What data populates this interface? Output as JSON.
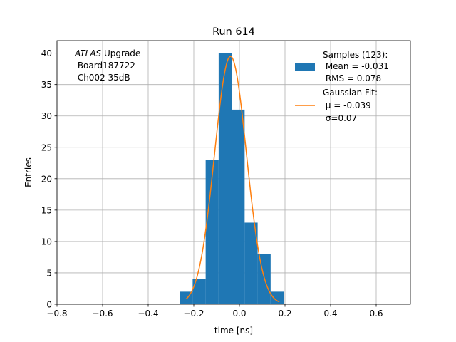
{
  "chart_data": {
    "type": "bar",
    "title": "Run 614",
    "xlabel": "time [ns]",
    "ylabel": "Entries",
    "xlim": [
      -0.8,
      0.75
    ],
    "ylim": [
      0,
      42
    ],
    "xticks": [
      -0.8,
      -0.6,
      -0.4,
      -0.2,
      0.0,
      0.2,
      0.4,
      0.6
    ],
    "xtick_labels": [
      "−0.8",
      "−0.6",
      "−0.4",
      "−0.2",
      "0.0",
      "0.2",
      "0.4",
      "0.6"
    ],
    "yticks": [
      0,
      5,
      10,
      15,
      20,
      25,
      30,
      35,
      40
    ],
    "ytick_labels": [
      "0",
      "5",
      "10",
      "15",
      "20",
      "25",
      "30",
      "35",
      "40"
    ],
    "grid": true,
    "legend_position": "top-right",
    "colors": {
      "histogram": "#1f77b4",
      "fit": "#ff7f0e"
    },
    "annotation": {
      "line1_italic": "ATLAS",
      "line1_rest": " Upgrade",
      "line2": " Board187722",
      "line3": " Ch002 35dB"
    },
    "series": [
      {
        "name": "Samples (123):",
        "kind": "histogram",
        "bins": [
          {
            "x0": -0.262,
            "x1": -0.205,
            "count": 2
          },
          {
            "x0": -0.205,
            "x1": -0.148,
            "count": 4
          },
          {
            "x0": -0.148,
            "x1": -0.091,
            "count": 23
          },
          {
            "x0": -0.091,
            "x1": -0.034,
            "count": 40
          },
          {
            "x0": -0.034,
            "x1": 0.023,
            "count": 31
          },
          {
            "x0": 0.023,
            "x1": 0.08,
            "count": 13
          },
          {
            "x0": 0.08,
            "x1": 0.137,
            "count": 8
          },
          {
            "x0": 0.137,
            "x1": 0.194,
            "count": 2
          }
        ],
        "legend_lines": [
          "Samples (123):",
          " Mean = -0.031",
          " RMS = 0.078"
        ]
      },
      {
        "name": "Gaussian Fit:",
        "kind": "line",
        "amplitude": 39.5,
        "mu": -0.039,
        "sigma": 0.07,
        "x_range": [
          -0.233,
          0.175
        ],
        "legend_lines": [
          "Gaussian Fit:",
          " μ = -0.039",
          " σ=0.07"
        ]
      }
    ]
  }
}
